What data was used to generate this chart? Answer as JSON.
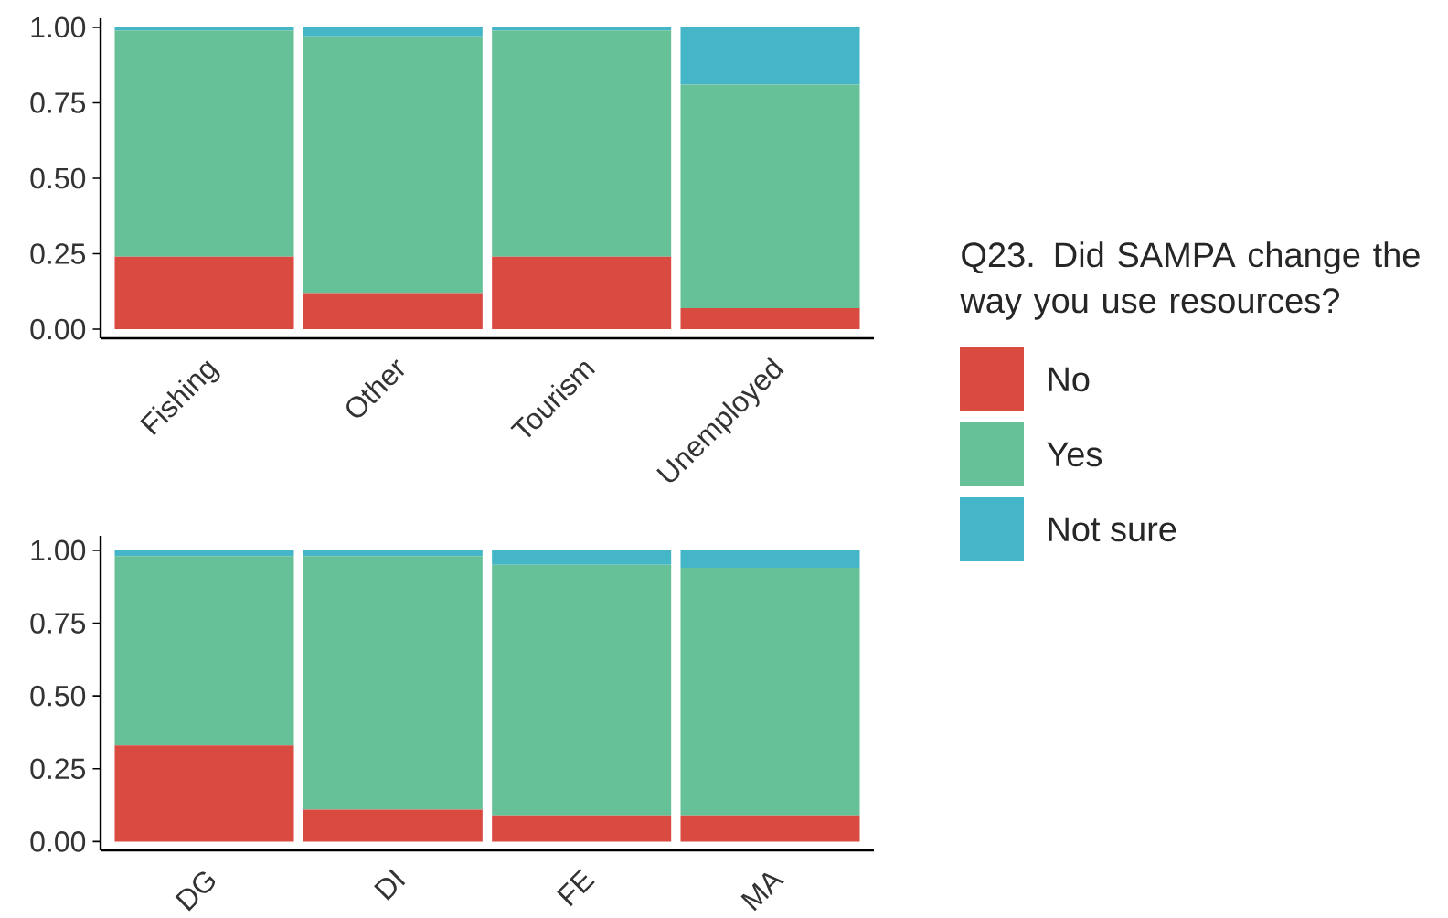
{
  "chart_data": [
    {
      "type": "bar",
      "stacked": true,
      "legend": "right",
      "legend_title": "Q23. Did SAMPA change the way you use resources?",
      "categories": [
        "Fishing",
        "Other",
        "Tourism",
        "Unemployed"
      ],
      "series": [
        {
          "name": "No",
          "color": "#d94a41",
          "values": [
            0.24,
            0.12,
            0.24,
            0.07
          ]
        },
        {
          "name": "Yes",
          "color": "#66c199",
          "values": [
            0.75,
            0.85,
            0.75,
            0.74
          ]
        },
        {
          "name": "Not sure",
          "color": "#45b5c8",
          "values": [
            0.01,
            0.03,
            0.01,
            0.19
          ]
        }
      ],
      "ylim": [
        -0.03,
        1.03
      ],
      "yticks": [
        {
          "value": 0,
          "label": "0.00"
        },
        {
          "value": 0.25,
          "label": "0.25"
        },
        {
          "value": 0.5,
          "label": "0.50"
        },
        {
          "value": 0.75,
          "label": "0.75"
        },
        {
          "value": 1,
          "label": "1.00"
        }
      ]
    },
    {
      "type": "bar",
      "stacked": true,
      "categories": [
        "DG",
        "DI",
        "FE",
        "MA"
      ],
      "series": [
        {
          "color": "#d94a41",
          "values": [
            0.33,
            0.11,
            0.09,
            0.09
          ]
        },
        {
          "color": "#66c199",
          "values": [
            0.65,
            0.87,
            0.86,
            0.85
          ]
        },
        {
          "color": "#45b5c8",
          "values": [
            0.02,
            0.02,
            0.05,
            0.06
          ]
        }
      ],
      "ylim": [
        -0.03,
        1.05
      ],
      "yticks": [
        {
          "value": 0,
          "label": "0.00"
        },
        {
          "value": 0.25,
          "label": "0.25"
        },
        {
          "value": 0.5,
          "label": "0.50"
        },
        {
          "value": 0.75,
          "label": "0.75"
        },
        {
          "value": 1,
          "label": "1.00"
        }
      ]
    }
  ]
}
